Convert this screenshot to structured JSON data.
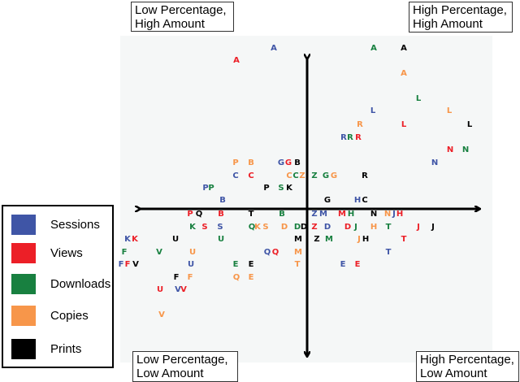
{
  "quadrants": {
    "top_left": [
      "Low Percentage,",
      "High Amount"
    ],
    "top_right": [
      "High Percentage,",
      "High Amount"
    ],
    "bottom_left": [
      "Low Percentage,",
      "Low Amount"
    ],
    "bottom_right": [
      "High Percentage,",
      "Low Amount"
    ]
  },
  "legend": [
    {
      "label": "Sessions",
      "color": "#3f55a6"
    },
    {
      "label": "Views",
      "color": "#ec1f27"
    },
    {
      "label": "Downloads",
      "color": "#188040"
    },
    {
      "label": "Copies",
      "color": "#f7964a"
    },
    {
      "label": "Prints",
      "color": "#000000"
    }
  ],
  "points": [
    [
      "A",
      0
    ],
    [
      "A",
      1
    ],
    [
      "A",
      2
    ],
    [
      "A",
      4
    ],
    [
      "A",
      3
    ],
    [
      "L",
      2
    ],
    [
      "L",
      0
    ],
    [
      "L",
      3
    ],
    [
      "R",
      3
    ],
    [
      "L",
      1
    ],
    [
      "L",
      4
    ],
    [
      "R",
      0
    ],
    [
      "R",
      2
    ],
    [
      "R",
      1
    ],
    [
      "N",
      1
    ],
    [
      "N",
      2
    ],
    [
      "N",
      0
    ],
    [
      "P",
      3
    ],
    [
      "B",
      3
    ],
    [
      "G",
      0
    ],
    [
      "G",
      1
    ],
    [
      "B",
      4
    ],
    [
      "C",
      0
    ],
    [
      "C",
      1
    ],
    [
      "C",
      3
    ],
    [
      "C",
      2
    ],
    [
      "Z",
      3
    ],
    [
      "Z",
      2
    ],
    [
      "G",
      2
    ],
    [
      "G",
      3
    ],
    [
      "R",
      4
    ],
    [
      "P",
      0
    ],
    [
      "P",
      2
    ],
    [
      "P",
      4
    ],
    [
      "S",
      2
    ],
    [
      "K",
      4
    ],
    [
      "B",
      0
    ],
    [
      "G",
      4
    ],
    [
      "H",
      0
    ],
    [
      "C",
      4
    ],
    [
      "P",
      1
    ],
    [
      "Q",
      4
    ],
    [
      "B",
      1
    ],
    [
      "T",
      4
    ],
    [
      "B",
      2
    ],
    [
      "Z",
      0
    ],
    [
      "M",
      0
    ],
    [
      "M",
      1
    ],
    [
      "H",
      2
    ],
    [
      "N",
      4
    ],
    [
      "N",
      3
    ],
    [
      "J",
      0
    ],
    [
      "H",
      1
    ],
    [
      "K",
      2
    ],
    [
      "S",
      1
    ],
    [
      "S",
      0
    ],
    [
      "Q",
      2
    ],
    [
      "K",
      3
    ],
    [
      "S",
      3
    ],
    [
      "D",
      3
    ],
    [
      "D",
      2
    ],
    [
      "D",
      4
    ],
    [
      "Z",
      1
    ],
    [
      "D",
      0
    ],
    [
      "D",
      1
    ],
    [
      "J",
      2
    ],
    [
      "H",
      3
    ],
    [
      "T",
      2
    ],
    [
      "J",
      1
    ],
    [
      "J",
      4
    ],
    [
      "K",
      0
    ],
    [
      "K",
      1
    ],
    [
      "U",
      4
    ],
    [
      "U",
      2
    ],
    [
      "M",
      4
    ],
    [
      "Z",
      4
    ],
    [
      "M",
      2
    ],
    [
      "J",
      3
    ],
    [
      "H",
      4
    ],
    [
      "T",
      1
    ],
    [
      "F",
      2
    ],
    [
      "V",
      2
    ],
    [
      "U",
      3
    ],
    [
      "Q",
      0
    ],
    [
      "Q",
      1
    ],
    [
      "M",
      3
    ],
    [
      "T",
      0
    ],
    [
      "F",
      0
    ],
    [
      "F",
      1
    ],
    [
      "V",
      4
    ],
    [
      "U",
      0
    ],
    [
      "E",
      2
    ],
    [
      "E",
      4
    ],
    [
      "T",
      3
    ],
    [
      "E",
      0
    ],
    [
      "E",
      1
    ],
    [
      "F",
      4
    ],
    [
      "F",
      3
    ],
    [
      "Q",
      3
    ],
    [
      "E",
      3
    ],
    [
      "U",
      1
    ],
    [
      "V",
      0
    ],
    [
      "V",
      1
    ],
    [
      "V",
      3
    ]
  ]
}
